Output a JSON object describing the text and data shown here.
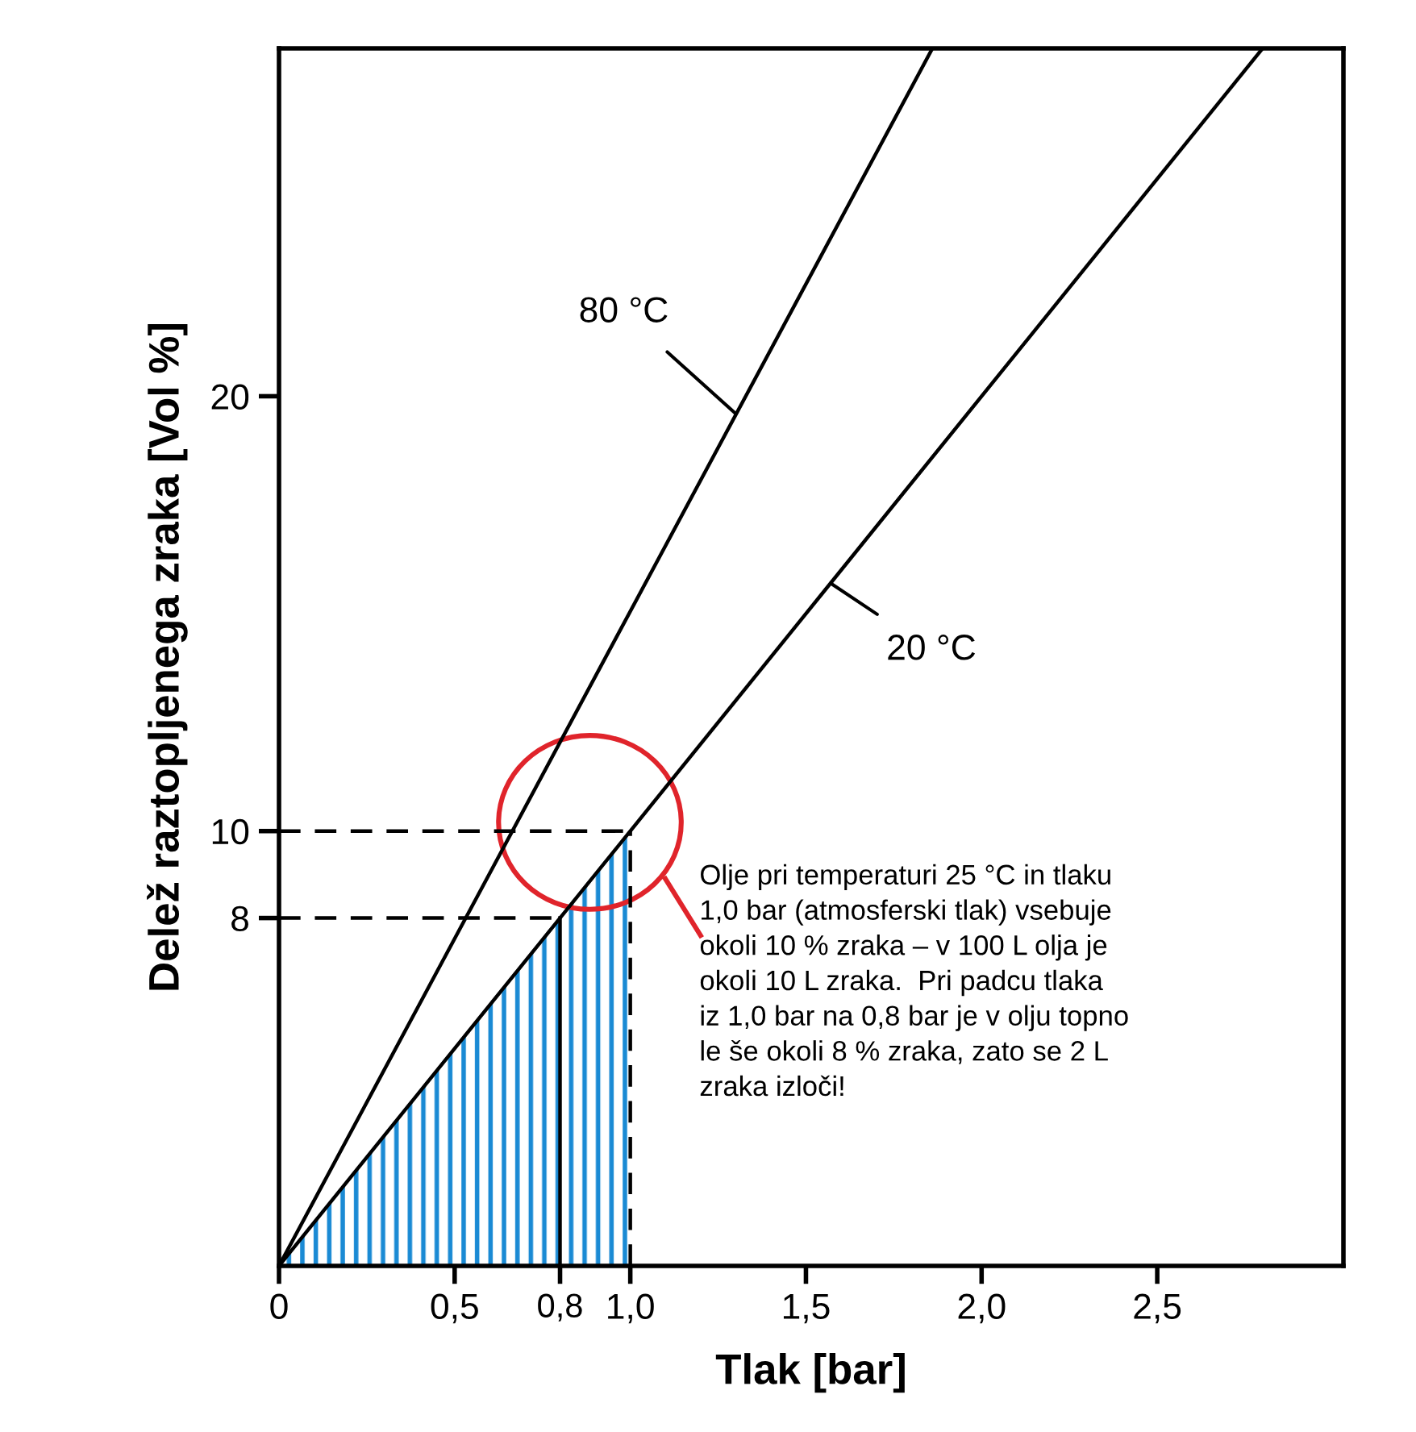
{
  "chart_data": {
    "type": "line",
    "xlabel": "Tlak [bar]",
    "ylabel": "Delež raztopljenega zraka [Vol %]",
    "xlim": [
      0,
      3.03
    ],
    "ylim": [
      0,
      28
    ],
    "xticks": [
      {
        "value": 0,
        "label": "0"
      },
      {
        "value": 0.5,
        "label": "0,5"
      },
      {
        "value": 0.8,
        "label": "0,8"
      },
      {
        "value": 1.0,
        "label": "1,0"
      },
      {
        "value": 1.5,
        "label": "1,5"
      },
      {
        "value": 2.0,
        "label": "2,0"
      },
      {
        "value": 2.5,
        "label": "2,5"
      }
    ],
    "yticks": [
      8,
      10,
      20
    ],
    "grid": false,
    "legend": false,
    "series": [
      {
        "color": "#000000",
        "x": [
          0,
          1.86
        ],
        "values": [
          0,
          28
        ],
        "line_style": "solid"
      },
      {
        "color": "#000000",
        "x": [
          0,
          2.8
        ],
        "values": [
          0,
          28
        ],
        "line_style": "solid"
      },
      {
        "type": "area",
        "color": "#1a8ad4",
        "x": [
          0,
          1.0
        ],
        "values": [
          0,
          10
        ]
      },
      {
        "type": "line",
        "color": "#000000",
        "x": [
          0,
          1.0
        ],
        "values": [
          10,
          10
        ],
        "line_style": "dashed"
      },
      {
        "type": "line",
        "color": "#000000",
        "x": [
          1.0,
          1.0
        ],
        "values": [
          0,
          10
        ],
        "line_style": "dashed"
      },
      {
        "type": "line",
        "color": "#000000",
        "x": [
          0,
          0.8
        ],
        "values": [
          8,
          8
        ],
        "line_style": "dashed"
      },
      {
        "type": "line",
        "color": "#000000",
        "x": [
          0.8,
          0.8
        ],
        "values": [
          0,
          8
        ],
        "line_style": "solid"
      }
    ],
    "annotations": [
      {
        "text": "80 °C",
        "x": 1.3,
        "y": 19.6
      },
      {
        "text": "20 °C",
        "x": 1.57,
        "y": 15.7
      },
      "Olje pri temperaturi 25 °C in tlaku\n1,0 bar (atmosferski tlak) vsebuje\nokoli 10 % zraka – v 100 L olja je\nokoli 10 L zraka.  Pri padcu tlaka\niz 1,0 bar na 0,8 bar je v olju topno\nle še okoli 8 % zraka, zato se 2 L\nzraka izloči!"
    ]
  }
}
